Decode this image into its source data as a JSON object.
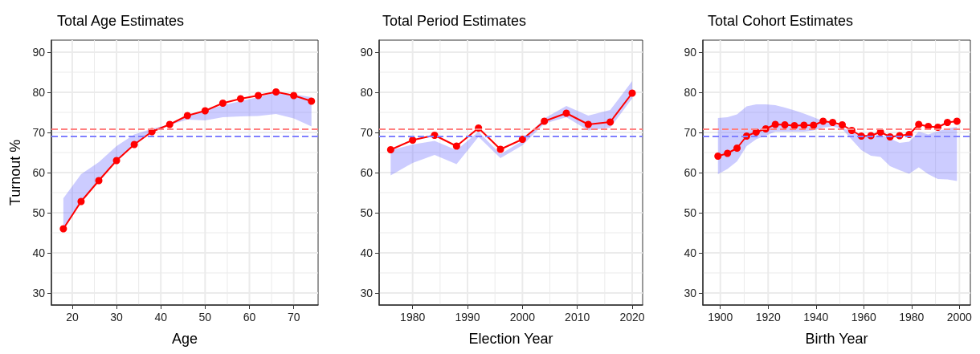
{
  "chart_data": [
    {
      "type": "line",
      "title": "Total Age Estimates",
      "xlabel": "Age",
      "ylabel": "Turnout %",
      "x": [
        18,
        22,
        26,
        30,
        34,
        38,
        42,
        46,
        50,
        54,
        58,
        62,
        66,
        70,
        74
      ],
      "xlim": [
        15.3,
        75.5
      ],
      "xticks": [
        20,
        30,
        40,
        50,
        60,
        70
      ],
      "ylim": [
        27,
        93
      ],
      "yticks": [
        30,
        40,
        50,
        60,
        70,
        80,
        90
      ],
      "grid": true,
      "marker": "circle",
      "line_style": "solid",
      "series": [
        {
          "color": "#ff0000",
          "values": [
            46,
            52.8,
            58,
            63,
            67,
            70.2,
            72,
            74.2,
            75.4,
            77.3,
            78.4,
            79.2,
            80.1,
            79.2,
            77.8
          ],
          "lower": [
            46,
            52.8,
            58,
            63,
            67,
            70,
            71.9,
            73.2,
            73,
            73.8,
            74,
            74.1,
            74.6,
            73.5,
            71.5
          ],
          "upper": [
            53.6,
            59.6,
            62.6,
            66.6,
            69.5,
            70.9,
            72,
            74,
            75.4,
            76.8,
            77.8,
            78.8,
            80,
            79.5,
            78.8
          ]
        }
      ],
      "ref_lines": [
        {
          "axis": "y",
          "value": 70.8,
          "color": "#ff8080",
          "line_style": "dashed"
        },
        {
          "axis": "y",
          "value": 69.1,
          "color": "#8080ff",
          "line_style": "dashed"
        }
      ]
    },
    {
      "type": "line",
      "title": "Total Period Estimates",
      "xlabel": "Election Year",
      "x": [
        1976,
        1980,
        1984,
        1988,
        1992,
        1996,
        2000,
        2004,
        2008,
        2012,
        2016,
        2020
      ],
      "xlim": [
        1973.9,
        2021.9
      ],
      "xticks": [
        1980,
        1990,
        2000,
        2010,
        2020
      ],
      "ylim": [
        27,
        93
      ],
      "yticks": [
        30,
        40,
        50,
        60,
        70,
        80,
        90
      ],
      "grid": true,
      "marker": "circle",
      "line_style": "solid",
      "series": [
        {
          "color": "#ff0000",
          "values": [
            65.7,
            68.1,
            69.3,
            66.6,
            71.1,
            65.8,
            68.3,
            72.8,
            74.8,
            72,
            72.6,
            79.8
          ],
          "lower": [
            59.3,
            62.4,
            64.4,
            62.1,
            68.9,
            63.6,
            66.8,
            72.2,
            73.8,
            70.5,
            71.2,
            78.5
          ],
          "upper": [
            65.6,
            67,
            67.9,
            65.6,
            70.2,
            64.6,
            67.9,
            73.5,
            76.6,
            74.2,
            75.6,
            82.8
          ]
        }
      ],
      "ref_lines": [
        {
          "axis": "y",
          "value": 70.8,
          "color": "#ff8080",
          "line_style": "dashed"
        },
        {
          "axis": "y",
          "value": 69.1,
          "color": "#8080ff",
          "line_style": "dashed"
        }
      ]
    },
    {
      "type": "line",
      "title": "Total Cohort Estimates",
      "xlabel": "Birth Year",
      "x": [
        1899,
        1903,
        1907,
        1911,
        1915,
        1919,
        1923,
        1927,
        1931,
        1935,
        1939,
        1943,
        1947,
        1951,
        1955,
        1959,
        1963,
        1967,
        1971,
        1975,
        1979,
        1983,
        1987,
        1991,
        1995,
        1999
      ],
      "xlim": [
        1892.7,
        2004.6
      ],
      "xticks": [
        1900,
        1920,
        1940,
        1960,
        1980,
        2000
      ],
      "ylim": [
        27,
        93
      ],
      "yticks": [
        30,
        40,
        50,
        60,
        70,
        80,
        90
      ],
      "grid": true,
      "marker": "circle",
      "line_style": "solid",
      "series": [
        {
          "color": "#ff0000",
          "values": [
            64.1,
            64.8,
            66.1,
            69.1,
            70.1,
            70.9,
            72,
            71.9,
            71.7,
            71.8,
            71.8,
            72.8,
            72.5,
            71.9,
            70.5,
            69.1,
            69.2,
            70.1,
            68.9,
            69.2,
            69.5,
            72,
            71.5,
            71.3,
            72.5,
            72.8
          ],
          "lower": [
            59.6,
            60.9,
            62.8,
            66.6,
            68.3,
            69.2,
            70.2,
            70.2,
            70.2,
            70.2,
            70.5,
            71.2,
            71.5,
            70.9,
            68.2,
            65.6,
            64.2,
            63.9,
            61.6,
            60.6,
            59.7,
            61.3,
            59.6,
            58.4,
            58.3,
            57.9
          ],
          "upper": [
            73.6,
            73.8,
            74.5,
            76.5,
            77,
            77,
            76.8,
            76.2,
            75.5,
            74.7,
            73.8,
            72.8,
            72.3,
            71.2,
            70.2,
            68.9,
            69,
            69.5,
            68.5,
            67.4,
            67.7,
            70.2,
            69.5,
            70.3,
            71,
            71.4
          ]
        }
      ],
      "ref_lines": [
        {
          "axis": "y",
          "value": 70.8,
          "color": "#ff8080",
          "line_style": "dashed"
        },
        {
          "axis": "y",
          "value": 69.1,
          "color": "#8080ff",
          "line_style": "dashed"
        }
      ]
    }
  ]
}
